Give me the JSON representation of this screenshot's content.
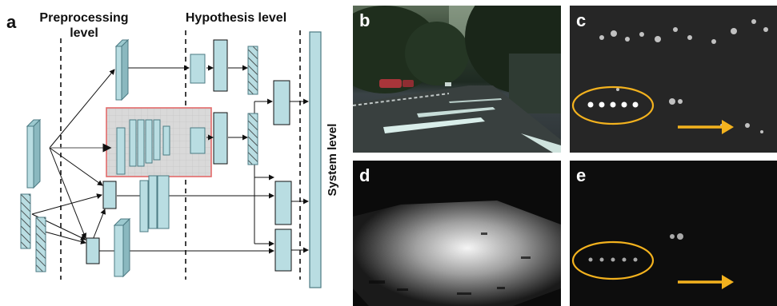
{
  "panel_a": {
    "label": "a",
    "headings": {
      "preprocessing_line1": "Preprocessing",
      "preprocessing_line2": "level",
      "hypothesis": "Hypothesis level",
      "system": "System level"
    },
    "colors": {
      "block_fill": "#b9dde2",
      "block_stroke": "#4c7a83",
      "highlight_fill": "#d8d8d8",
      "highlight_stroke": "#e36a6a"
    }
  },
  "panel_b": {
    "label": "b"
  },
  "panel_c": {
    "label": "c"
  },
  "panel_d": {
    "label": "d"
  },
  "panel_e": {
    "label": "e"
  },
  "annotation_colors": {
    "ellipse": "#f3b21e",
    "arrow": "#f3b21e"
  }
}
